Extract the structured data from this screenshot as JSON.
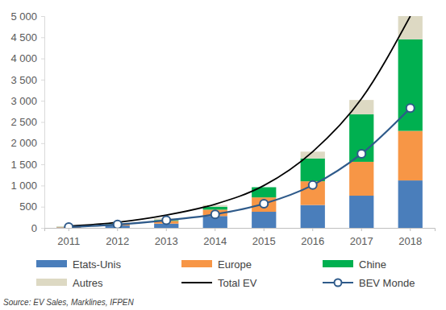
{
  "chart_data": {
    "type": "bar",
    "stacked": true,
    "grid": false,
    "legend": "bottom",
    "source": "Source: EV Sales, Marklines, IFPEN",
    "categories": [
      "2011",
      "2012",
      "2013",
      "2014",
      "2015",
      "2016",
      "2017",
      "2018"
    ],
    "ylim": [
      0,
      5000
    ],
    "yticks": [
      0,
      500,
      {
        "value": 1000,
        "label": "1 000"
      },
      {
        "value": 1500,
        "label": "1 500"
      },
      {
        "value": 2000,
        "label": "2 000"
      },
      {
        "value": 2500,
        "label": "2 500"
      },
      {
        "value": 3000,
        "label": "3 000"
      },
      {
        "value": 3500,
        "label": "3 500"
      },
      {
        "value": 4000,
        "label": "4 000"
      },
      {
        "value": 4500,
        "label": "4 500"
      },
      {
        "value": 5000,
        "label": "5 000"
      }
    ],
    "series": [
      {
        "name": "Etats-Unis",
        "type": "bar",
        "color": "#4a7ebb",
        "values": [
          10,
          55,
          100,
          280,
          380,
          540,
          760,
          1120
        ]
      },
      {
        "name": "Europe",
        "type": "bar",
        "color": "#f79646",
        "values": [
          10,
          25,
          65,
          150,
          340,
          560,
          800,
          1170
        ]
      },
      {
        "name": "Chine",
        "type": "bar",
        "color": "#00b050",
        "values": [
          5,
          10,
          20,
          70,
          240,
          540,
          1120,
          2160
        ]
      },
      {
        "name": "Autres",
        "type": "bar",
        "color": "#ddd9c3",
        "values": [
          15,
          20,
          40,
          40,
          0,
          160,
          340,
          550
        ]
      },
      {
        "name": "Total EV",
        "type": "line",
        "color": "#000000",
        "line_style": "solid",
        "values": [
          40,
          130,
          300,
          560,
          1000,
          1800,
          3050,
          5000
        ]
      },
      {
        "name": "BEV Monde",
        "type": "line",
        "color": "#2e5a8a",
        "marker": "circle",
        "line_style": "solid",
        "values": [
          20,
          80,
          180,
          320,
          570,
          1010,
          1750,
          2830
        ]
      }
    ]
  }
}
